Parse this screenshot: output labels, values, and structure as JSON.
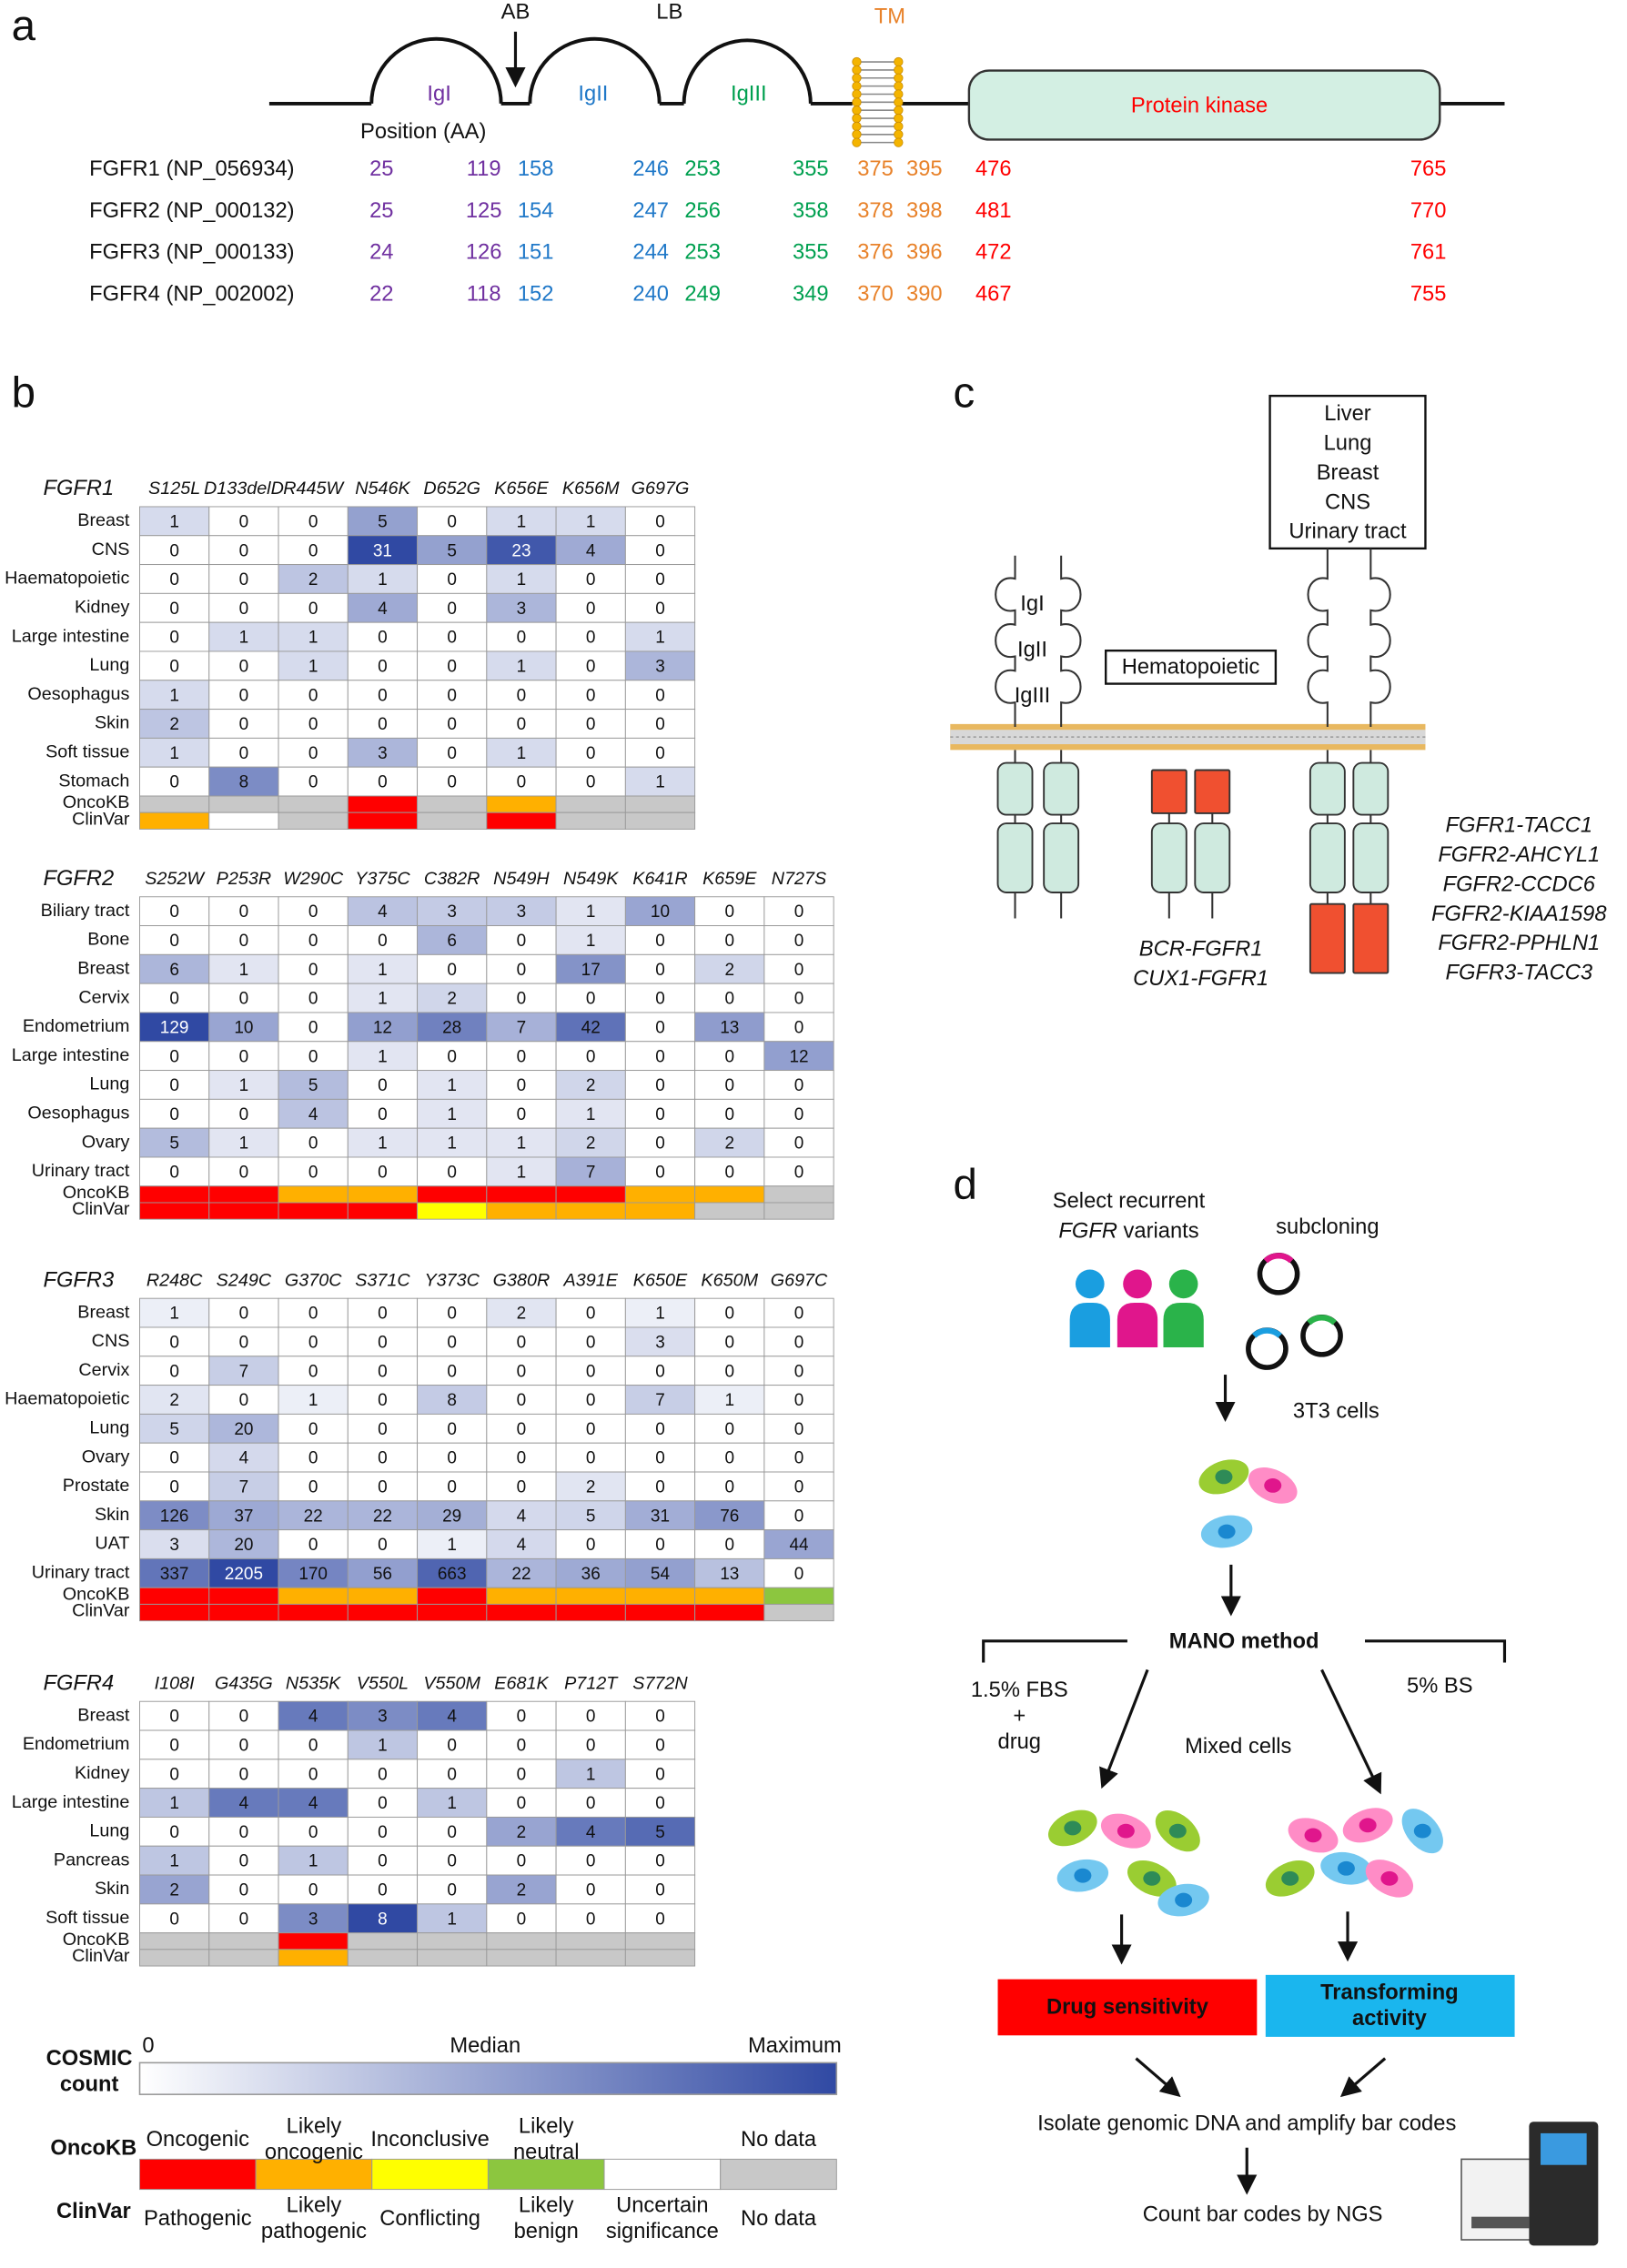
{
  "panel_a": {
    "label": "a",
    "ab": "AB",
    "lb": "LB",
    "tm": "TM",
    "igi": "IgI",
    "igii": "IgII",
    "igiii": "IgIII",
    "kinase": "Protein kinase",
    "position_label": "Position (AA)",
    "position_colors": [
      "#7030a0",
      "#7030a0",
      "#1f78c8",
      "#1f78c8",
      "#00a050",
      "#00a050",
      "#e8822a",
      "#e8822a",
      "#ff0000",
      "#ff0000"
    ],
    "rows": [
      {
        "name": "FGFR1 (NP_056934)",
        "positions": [
          25,
          119,
          158,
          246,
          253,
          355,
          375,
          395,
          476,
          765
        ]
      },
      {
        "name": "FGFR2 (NP_000132)",
        "positions": [
          25,
          125,
          154,
          247,
          256,
          358,
          378,
          398,
          481,
          770
        ]
      },
      {
        "name": "FGFR3 (NP_000133)",
        "positions": [
          24,
          126,
          151,
          244,
          253,
          355,
          376,
          396,
          472,
          761
        ]
      },
      {
        "name": "FGFR4 (NP_002002)",
        "positions": [
          22,
          118,
          152,
          240,
          249,
          349,
          370,
          390,
          467,
          755
        ]
      }
    ]
  },
  "panel_b": {
    "label": "b",
    "oncokb_label": "OncoKB",
    "clinvar_label": "ClinVar",
    "tables": [
      {
        "gene": "FGFR1",
        "mutations": [
          "S125L",
          "D133delD",
          "R445W",
          "N546K",
          "D652G",
          "K656E",
          "K656M",
          "G697G"
        ],
        "tissues": [
          "Breast",
          "CNS",
          "Haematopoietic",
          "Kidney",
          "Large intestine",
          "Lung",
          "Oesophagus",
          "Skin",
          "Soft tissue",
          "Stomach"
        ],
        "counts": [
          [
            1,
            0,
            0,
            5,
            0,
            1,
            1,
            0
          ],
          [
            0,
            0,
            0,
            31,
            5,
            23,
            4,
            0
          ],
          [
            0,
            0,
            2,
            1,
            0,
            1,
            0,
            0
          ],
          [
            0,
            0,
            0,
            4,
            0,
            3,
            0,
            0
          ],
          [
            0,
            1,
            1,
            0,
            0,
            0,
            0,
            1
          ],
          [
            0,
            0,
            1,
            0,
            0,
            1,
            0,
            3
          ],
          [
            1,
            0,
            0,
            0,
            0,
            0,
            0,
            0
          ],
          [
            2,
            0,
            0,
            0,
            0,
            0,
            0,
            0
          ],
          [
            1,
            0,
            0,
            3,
            0,
            1,
            0,
            0
          ],
          [
            0,
            8,
            0,
            0,
            0,
            0,
            0,
            1
          ]
        ],
        "oncokb": [
          "#c8c8c8",
          "#c8c8c8",
          "#c8c8c8",
          "#ff0000",
          "#c8c8c8",
          "#ffb000",
          "#c8c8c8",
          "#c8c8c8"
        ],
        "clinvar": [
          "#ffb000",
          "#ffffff",
          "#c8c8c8",
          "#ff0000",
          "#c8c8c8",
          "#ff0000",
          "#c8c8c8",
          "#c8c8c8"
        ]
      },
      {
        "gene": "FGFR2",
        "mutations": [
          "S252W",
          "P253R",
          "W290C",
          "Y375C",
          "C382R",
          "N549H",
          "N549K",
          "K641R",
          "K659E",
          "N727S"
        ],
        "tissues": [
          "Biliary tract",
          "Bone",
          "Breast",
          "Cervix",
          "Endometrium",
          "Large intestine",
          "Lung",
          "Oesophagus",
          "Ovary",
          "Urinary tract"
        ],
        "counts": [
          [
            0,
            0,
            0,
            4,
            3,
            3,
            1,
            10,
            0,
            0
          ],
          [
            0,
            0,
            0,
            0,
            6,
            0,
            1,
            0,
            0,
            0
          ],
          [
            6,
            1,
            0,
            1,
            0,
            0,
            17,
            0,
            2,
            0
          ],
          [
            0,
            0,
            0,
            1,
            2,
            0,
            0,
            0,
            0,
            0
          ],
          [
            129,
            10,
            0,
            12,
            28,
            7,
            42,
            0,
            13,
            0
          ],
          [
            0,
            0,
            0,
            1,
            0,
            0,
            0,
            0,
            0,
            12
          ],
          [
            0,
            1,
            5,
            0,
            1,
            0,
            2,
            0,
            0,
            0
          ],
          [
            0,
            0,
            4,
            0,
            1,
            0,
            1,
            0,
            0,
            0
          ],
          [
            5,
            1,
            0,
            1,
            1,
            1,
            2,
            0,
            2,
            0
          ],
          [
            0,
            0,
            0,
            0,
            0,
            1,
            7,
            0,
            0,
            0
          ]
        ],
        "oncokb": [
          "#ff0000",
          "#ff0000",
          "#ffb000",
          "#ffb000",
          "#ff0000",
          "#ff0000",
          "#ff0000",
          "#ffb000",
          "#ffb000",
          "#c8c8c8"
        ],
        "clinvar": [
          "#ff0000",
          "#ff0000",
          "#ff0000",
          "#ff0000",
          "#ffff00",
          "#ffb000",
          "#ffb000",
          "#ffb000",
          "#c8c8c8",
          "#c8c8c8"
        ]
      },
      {
        "gene": "FGFR3",
        "mutations": [
          "R248C",
          "S249C",
          "G370C",
          "S371C",
          "Y373C",
          "G380R",
          "A391E",
          "K650E",
          "K650M",
          "G697C"
        ],
        "tissues": [
          "Breast",
          "CNS",
          "Cervix",
          "Haematopoietic",
          "Lung",
          "Ovary",
          "Prostate",
          "Skin",
          "UAT",
          "Urinary tract"
        ],
        "counts": [
          [
            1,
            0,
            0,
            0,
            0,
            2,
            0,
            1,
            0,
            0
          ],
          [
            0,
            0,
            0,
            0,
            0,
            0,
            0,
            3,
            0,
            0
          ],
          [
            0,
            7,
            0,
            0,
            0,
            0,
            0,
            0,
            0,
            0
          ],
          [
            2,
            0,
            1,
            0,
            8,
            0,
            0,
            7,
            1,
            0
          ],
          [
            5,
            20,
            0,
            0,
            0,
            0,
            0,
            0,
            0,
            0
          ],
          [
            0,
            4,
            0,
            0,
            0,
            0,
            0,
            0,
            0,
            0
          ],
          [
            0,
            7,
            0,
            0,
            0,
            0,
            2,
            0,
            0,
            0
          ],
          [
            126,
            37,
            22,
            22,
            29,
            4,
            5,
            31,
            76,
            0
          ],
          [
            3,
            20,
            0,
            0,
            1,
            4,
            0,
            0,
            0,
            44
          ],
          [
            337,
            2205,
            170,
            56,
            663,
            22,
            36,
            54,
            13,
            0
          ]
        ],
        "oncokb": [
          "#ff0000",
          "#ff0000",
          "#ffb000",
          "#ffb000",
          "#ff0000",
          "#ffb000",
          "#ffb000",
          "#ffb000",
          "#ffb000",
          "#8cc63f"
        ],
        "clinvar": [
          "#ff0000",
          "#ff0000",
          "#ff0000",
          "#ff0000",
          "#ff0000",
          "#ff0000",
          "#ff0000",
          "#ff0000",
          "#ff0000",
          "#c8c8c8"
        ]
      },
      {
        "gene": "FGFR4",
        "mutations": [
          "I108I",
          "G435G",
          "N535K",
          "V550L",
          "V550M",
          "E681K",
          "P712T",
          "S772N"
        ],
        "tissues": [
          "Breast",
          "Endometrium",
          "Kidney",
          "Large intestine",
          "Lung",
          "Pancreas",
          "Skin",
          "Soft tissue"
        ],
        "counts": [
          [
            0,
            0,
            4,
            3,
            4,
            0,
            0,
            0
          ],
          [
            0,
            0,
            0,
            1,
            0,
            0,
            0,
            0
          ],
          [
            0,
            0,
            0,
            0,
            0,
            0,
            1,
            0
          ],
          [
            1,
            4,
            4,
            0,
            1,
            0,
            0,
            0
          ],
          [
            0,
            0,
            0,
            0,
            0,
            2,
            4,
            5
          ],
          [
            1,
            0,
            1,
            0,
            0,
            0,
            0,
            0
          ],
          [
            2,
            0,
            0,
            0,
            0,
            2,
            0,
            0
          ],
          [
            0,
            0,
            3,
            8,
            1,
            0,
            0,
            0
          ]
        ],
        "oncokb": [
          "#c8c8c8",
          "#c8c8c8",
          "#ff0000",
          "#c8c8c8",
          "#c8c8c8",
          "#c8c8c8",
          "#c8c8c8",
          "#c8c8c8"
        ],
        "clinvar": [
          "#c8c8c8",
          "#c8c8c8",
          "#ffb000",
          "#c8c8c8",
          "#c8c8c8",
          "#c8c8c8",
          "#c8c8c8",
          "#c8c8c8"
        ]
      }
    ],
    "legend": {
      "cosmic": {
        "label": "COSMIC\ncount",
        "min": "0",
        "mid": "Median",
        "max": "Maximum",
        "colors": [
          "#ffffff",
          "#3049a3"
        ]
      },
      "oncokb": {
        "label": "OncoKB",
        "categories": [
          "Oncogenic",
          "Likely\noncogenic",
          "Inconclusive",
          "Likely\nneutral",
          null,
          "No data"
        ]
      },
      "clinvar": {
        "label": "ClinVar",
        "categories": [
          "Pathogenic",
          "Likely\npathogenic",
          "Conflicting",
          "Likely\nbenign",
          "Uncertain\nsignificance",
          "No data"
        ]
      },
      "colors": [
        "#ff0000",
        "#ffb000",
        "#ffff00",
        "#8cc63f",
        "#ffffff",
        "#c8c8c8"
      ]
    }
  },
  "panel_c": {
    "label": "c",
    "tissues": [
      "Liver",
      "Lung",
      "Breast",
      "CNS",
      "Urinary tract"
    ],
    "hematopoietic": "Hematopoietic",
    "ig": [
      "IgI",
      "IgII",
      "IgIII"
    ],
    "bcr": [
      "BCR-FGFR1",
      "CUX1-FGFR1"
    ],
    "fusions": [
      "FGFR1-TACC1",
      "FGFR2-AHCYL1",
      "FGFR2-CCDC6",
      "FGFR2-KIAA1598",
      "FGFR2-PPHLN1",
      "FGFR3-TACC3"
    ]
  },
  "panel_d": {
    "label": "d",
    "select": "Select recurrent",
    "gene": "FGFR",
    "variants": "variants",
    "subcloning": "subcloning",
    "cells": "3T3 cells",
    "method": "MANO method",
    "left_condition": "1.5% FBS\n+\ndrug",
    "right_condition": "5% BS",
    "mixed": "Mixed cells",
    "drug": "Drug sensitivity",
    "transform": "Transforming\nactivity",
    "isolate": "Isolate genomic DNA and amplify bar codes",
    "count": "Count bar codes by NGS"
  }
}
